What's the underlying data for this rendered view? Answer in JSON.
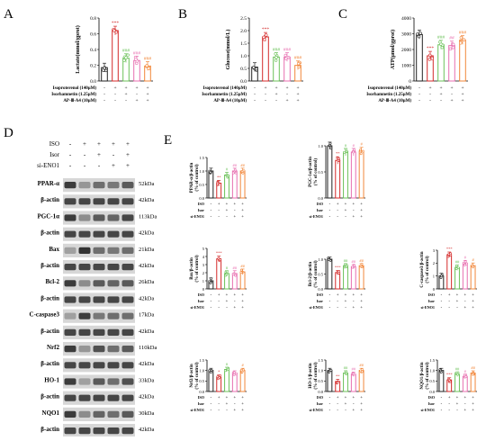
{
  "panel_letters": [
    "A",
    "B",
    "C",
    "D",
    "E"
  ],
  "top_treatments": {
    "rows": [
      "Isoproterenol (140μM)",
      "Isorhamnetin (1.25μM)",
      "AP-Ⅲ-A4 (10μM)"
    ],
    "signs": [
      [
        "-",
        "+",
        "+",
        "+",
        "+"
      ],
      [
        "-",
        "-",
        "+",
        "-",
        "+"
      ],
      [
        "-",
        "-",
        "-",
        "+",
        "+"
      ]
    ]
  },
  "colors": [
    "#222222",
    "#d42a2a",
    "#6cc25a",
    "#e86fb0",
    "#f2873a"
  ],
  "western": {
    "treat_labels": [
      "ISO",
      "Isor",
      "si-ENO1"
    ],
    "treat_signs": [
      [
        "-",
        "+",
        "+",
        "+",
        "+"
      ],
      [
        "-",
        "-",
        "+",
        "-",
        "+"
      ],
      [
        "-",
        "-",
        "-",
        "+",
        "+"
      ]
    ],
    "bands": [
      {
        "name": "PPAR-α",
        "kda": "52kDa",
        "intensities": [
          0.85,
          0.4,
          0.6,
          0.55,
          0.7
        ]
      },
      {
        "name": "β-actin",
        "kda": "42kDa",
        "intensities": [
          0.8,
          0.8,
          0.8,
          0.8,
          0.8
        ]
      },
      {
        "name": "PGC-1α",
        "kda": "113kDa",
        "intensities": [
          0.85,
          0.45,
          0.7,
          0.65,
          0.8
        ]
      },
      {
        "name": "β-actin",
        "kda": "42kDa",
        "intensities": [
          0.8,
          0.8,
          0.8,
          0.8,
          0.8
        ]
      },
      {
        "name": "Bax",
        "kda": "21kDa",
        "intensities": [
          0.35,
          0.9,
          0.6,
          0.55,
          0.6
        ]
      },
      {
        "name": "β-actin",
        "kda": "42kDa",
        "intensities": [
          0.8,
          0.8,
          0.8,
          0.8,
          0.8
        ]
      },
      {
        "name": "Bcl-2",
        "kda": "26kDa",
        "intensities": [
          0.85,
          0.45,
          0.7,
          0.65,
          0.7
        ]
      },
      {
        "name": "β-actin",
        "kda": "42kDa",
        "intensities": [
          0.8,
          0.8,
          0.8,
          0.8,
          0.8
        ]
      },
      {
        "name": "C-caspase3",
        "kda": "17kDa",
        "intensities": [
          0.35,
          0.85,
          0.55,
          0.6,
          0.6
        ]
      },
      {
        "name": "β-actin",
        "kda": "42kDa",
        "intensities": [
          0.8,
          0.8,
          0.8,
          0.8,
          0.8
        ]
      },
      {
        "name": "Nrf2",
        "kda": "110kDa",
        "intensities": [
          0.85,
          0.4,
          0.75,
          0.6,
          0.7
        ]
      },
      {
        "name": "β-actin",
        "kda": "42kDa",
        "intensities": [
          0.8,
          0.8,
          0.8,
          0.8,
          0.8
        ]
      },
      {
        "name": "HO-1",
        "kda": "33kDa",
        "intensities": [
          0.85,
          0.35,
          0.7,
          0.6,
          0.75
        ]
      },
      {
        "name": "β-actin",
        "kda": "42kDa",
        "intensities": [
          0.8,
          0.8,
          0.8,
          0.8,
          0.8
        ]
      },
      {
        "name": "NQO1",
        "kda": "30kDa",
        "intensities": [
          0.85,
          0.45,
          0.65,
          0.6,
          0.7
        ]
      },
      {
        "name": "β-actin",
        "kda": "42kDa",
        "intensities": [
          0.8,
          0.8,
          0.8,
          0.8,
          0.8
        ]
      }
    ]
  },
  "small_treatments": {
    "rows": [
      "ISO",
      "Isor",
      "si-ENO1"
    ],
    "signs": [
      [
        "-",
        "+",
        "+",
        "+",
        "+"
      ],
      [
        "-",
        "-",
        "+",
        "-",
        "+"
      ],
      [
        "-",
        "-",
        "-",
        "+",
        "+"
      ]
    ]
  },
  "chart_data": [
    {
      "type": "bar",
      "panel": "A",
      "ylabel": "Lactate(mmol/gprot)",
      "ylim": [
        0,
        0.8
      ],
      "yticks": [
        "0.0",
        "0.2",
        "0.4",
        "0.6",
        "0.8"
      ],
      "values": [
        0.17,
        0.64,
        0.29,
        0.26,
        0.19
      ],
      "sig": [
        "",
        "***",
        "###",
        "###",
        "###"
      ]
    },
    {
      "type": "bar",
      "panel": "B",
      "ylabel": "Glucose(mmol/L)",
      "ylim": [
        0,
        2.5
      ],
      "yticks": [
        "0.0",
        "0.5",
        "1.0",
        "1.5",
        "2.0",
        "2.5"
      ],
      "values": [
        0.55,
        1.75,
        0.95,
        0.95,
        0.62
      ],
      "sig": [
        "",
        "***",
        "###",
        "###",
        "###"
      ]
    },
    {
      "type": "bar",
      "panel": "C",
      "ylabel": "ATP(μmol/gprot)",
      "ylim": [
        0,
        4000
      ],
      "yticks": [
        "0",
        "1000",
        "2000",
        "3000",
        "4000"
      ],
      "values": [
        2950,
        1600,
        2300,
        2250,
        2600
      ],
      "sig": [
        "",
        "***",
        "###",
        "##",
        "###"
      ]
    },
    {
      "type": "bar",
      "panel": "E",
      "ylabel": "PPAR-α/β-actin\n(% of control)",
      "ylim": [
        0,
        1.5
      ],
      "yticks": [
        "0.0",
        "0.5",
        "1.0",
        "1.5"
      ],
      "values": [
        1.0,
        0.55,
        0.85,
        1.0,
        1.0
      ],
      "sig": [
        "",
        "**",
        "#",
        "##",
        "##"
      ]
    },
    {
      "type": "bar",
      "panel": "E",
      "ylabel": "PGC-1α/β-actin\n(% of control)",
      "ylim": [
        0,
        1.0
      ],
      "yticks": [
        "0.0",
        "0.5",
        "1.0"
      ],
      "values": [
        1.0,
        0.72,
        0.88,
        0.88,
        0.9
      ],
      "sig": [
        "",
        "**",
        "#",
        "#",
        "#"
      ]
    },
    {
      "type": "bar",
      "panel": "E",
      "ylabel": "Bax/β-actin\n(% of control)",
      "ylim": [
        0,
        5
      ],
      "yticks": [
        "0",
        "1",
        "2",
        "3",
        "4",
        "5"
      ],
      "values": [
        1.0,
        3.7,
        1.9,
        1.9,
        2.1
      ],
      "sig": [
        "",
        "***",
        "#",
        "##",
        "##"
      ]
    },
    {
      "type": "bar",
      "panel": "E",
      "ylabel": "Bcl-2/β-actin\n(% of control)",
      "ylim": [
        0,
        1.0
      ],
      "yticks": [
        "0.0",
        "0.5",
        "1.0"
      ],
      "values": [
        1.0,
        0.55,
        0.78,
        0.75,
        0.78
      ],
      "sig": [
        "",
        "***",
        "##",
        "##",
        "##"
      ]
    },
    {
      "type": "bar",
      "panel": "E",
      "ylabel": "C-caspase3/β-actin\n(% of control)",
      "ylim": [
        0,
        3
      ],
      "yticks": [
        "0",
        "1",
        "2",
        "3"
      ],
      "values": [
        1.0,
        2.65,
        1.65,
        2.0,
        1.8
      ],
      "sig": [
        "",
        "***",
        "##",
        "#",
        "#"
      ]
    },
    {
      "type": "bar",
      "panel": "E",
      "ylabel": "Nrf2/β-actin\n(% of control)",
      "ylim": [
        0,
        1.5
      ],
      "yticks": [
        "0.0",
        "0.5",
        "1.0",
        "1.5"
      ],
      "values": [
        1.0,
        0.68,
        1.05,
        0.88,
        1.0
      ],
      "sig": [
        "",
        "*",
        "#",
        "",
        "#"
      ]
    },
    {
      "type": "bar",
      "panel": "E",
      "ylabel": "HO-1/β-actin\n(% of control)",
      "ylim": [
        0,
        1.5
      ],
      "yticks": [
        "0.0",
        "0.5",
        "1.0",
        "1.5"
      ],
      "values": [
        1.0,
        0.48,
        0.88,
        0.82,
        1.0
      ],
      "sig": [
        "",
        "**",
        "##",
        "##",
        "##"
      ]
    },
    {
      "type": "bar",
      "panel": "E",
      "ylabel": "NQO1/β-actin\n(% of control)",
      "ylim": [
        0,
        1.5
      ],
      "yticks": [
        "0.0",
        "0.5",
        "1.0",
        "1.5"
      ],
      "values": [
        1.0,
        0.55,
        0.82,
        0.72,
        0.88
      ],
      "sig": [
        "",
        "***",
        "##",
        "#",
        "##"
      ]
    }
  ]
}
